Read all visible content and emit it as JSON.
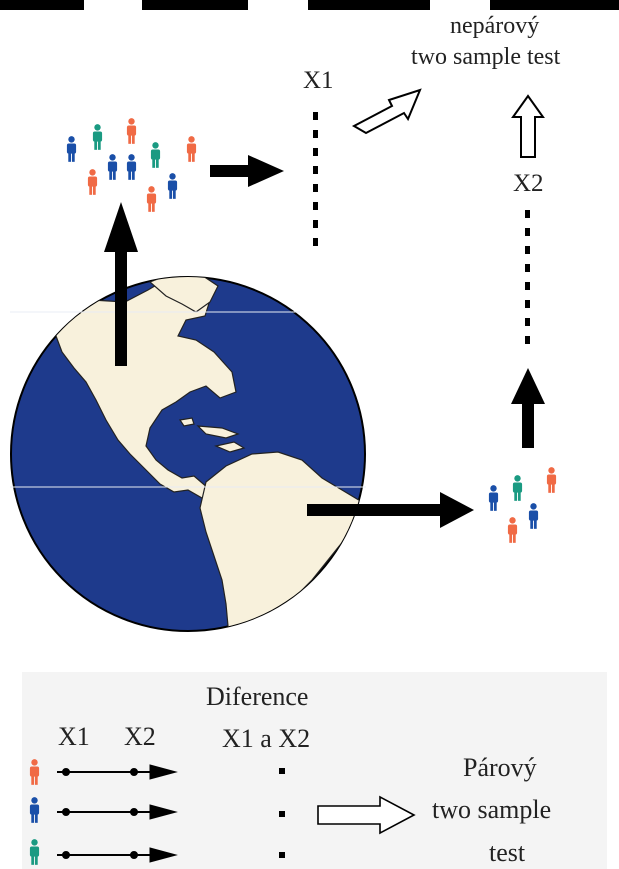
{
  "labels": {
    "unpaired_line1": "nepárový",
    "unpaired_line2": "two sample test",
    "x1_top": "X1",
    "x2_right": "X2",
    "diff_line1": "Diference",
    "diff_line2": "X1 a X2",
    "x1_bottom": "X1",
    "x2_bottom": "X2",
    "paired_line1": "Párový",
    "paired_line2": "two sample",
    "paired_line3": "test"
  },
  "colors": {
    "ocean": "#1e3a8c",
    "land": "#f8f1dc",
    "person_blue": "#1a4fa8",
    "person_red": "#f06a45",
    "person_teal": "#1a9a82",
    "arrow": "#000000",
    "panel_bg": "#f4f4f4"
  },
  "icons": [
    "globe-icon",
    "person-icon",
    "arrow-icon",
    "hollow-arrow-icon"
  ]
}
